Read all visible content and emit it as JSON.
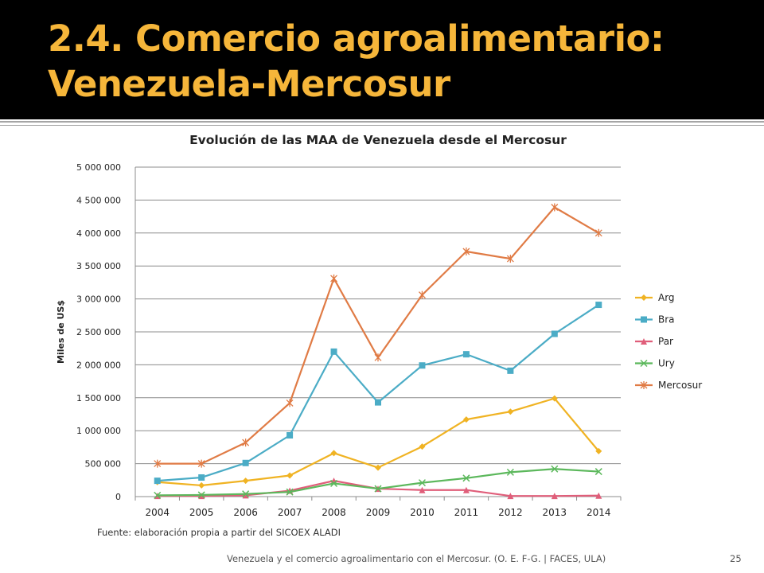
{
  "slide": {
    "title_line1": "2.4. Comercio agroalimentario:",
    "title_line2": "Venezuela-Mercosur",
    "source": "Fuente: elaboración propia a partir del SICOEX ALADI",
    "footer": "Venezuela y el comercio agroalimentario con el Mercosur. (O. E. F-G. | FACES, ULA)",
    "page_number": "25",
    "colors": {
      "title_bar": "#000000",
      "title_text": "#f6b63a"
    }
  },
  "chart_data": {
    "type": "line",
    "title": "Evolución de las MAA de Venezuela desde el Mercosur",
    "xlabel": "",
    "ylabel": "Miles de US$",
    "categories": [
      "2004",
      "2005",
      "2006",
      "2007",
      "2008",
      "2009",
      "2010",
      "2011",
      "2012",
      "2013",
      "2014"
    ],
    "ylim": [
      0,
      5000000
    ],
    "yticks": [
      0,
      500000,
      1000000,
      1500000,
      2000000,
      2500000,
      3000000,
      3500000,
      4000000,
      4500000,
      5000000
    ],
    "ytick_labels": [
      "0",
      "500 000",
      "1 000 000",
      "1 500 000",
      "2 000 000",
      "2 500 000",
      "3 000 000",
      "3 500 000",
      "4 000 000",
      "4 500 000",
      "5 000 000"
    ],
    "grid": true,
    "legend_position": "right",
    "series": [
      {
        "name": "Arg",
        "color": "#f0b323",
        "marker": "diamond",
        "values": [
          220000,
          170000,
          240000,
          320000,
          660000,
          440000,
          760000,
          1170000,
          1290000,
          1490000,
          690000
        ]
      },
      {
        "name": "Bra",
        "color": "#4bacc6",
        "marker": "square",
        "values": [
          240000,
          290000,
          510000,
          930000,
          2200000,
          1430000,
          1990000,
          2160000,
          1910000,
          2470000,
          2910000
        ]
      },
      {
        "name": "Par",
        "color": "#e05e7a",
        "marker": "triangle",
        "values": [
          10000,
          10000,
          20000,
          90000,
          240000,
          120000,
          100000,
          100000,
          10000,
          10000,
          15000
        ]
      },
      {
        "name": "Ury",
        "color": "#5cb85c",
        "marker": "x",
        "values": [
          20000,
          25000,
          40000,
          70000,
          200000,
          120000,
          210000,
          280000,
          370000,
          420000,
          380000
        ]
      },
      {
        "name": "Mercosur",
        "color": "#e07b45",
        "marker": "star",
        "values": [
          500000,
          500000,
          820000,
          1420000,
          3310000,
          2110000,
          3060000,
          3720000,
          3610000,
          4390000,
          4000000
        ]
      }
    ]
  }
}
